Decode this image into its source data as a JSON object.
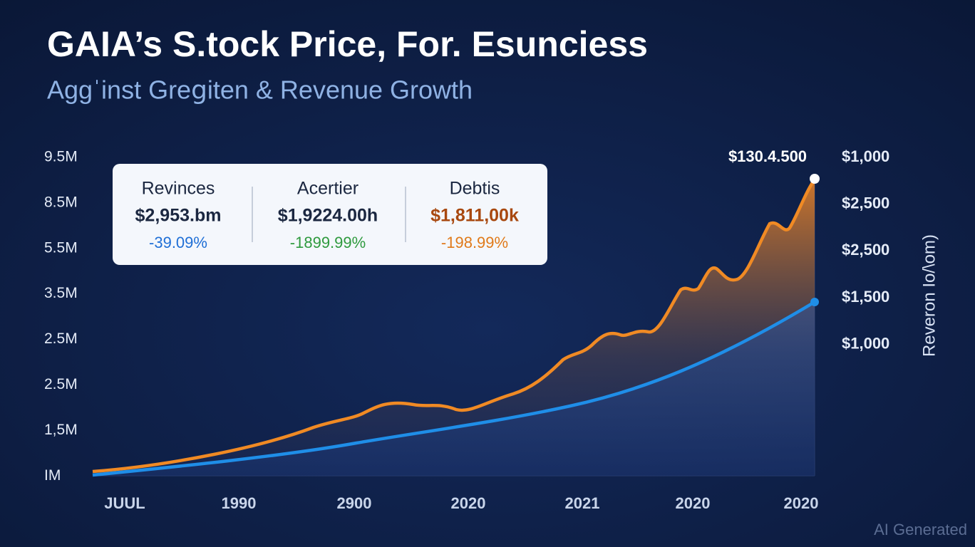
{
  "header": {
    "title": "GAIA’s S.tock Price, For. Esunciess",
    "subtitle": "Aggˈinst Greցiten & Revenue Growth"
  },
  "summary_cards": [
    {
      "label": "Revinces",
      "amount": "$2,953.bm",
      "change": "-39.09%"
    },
    {
      "label": "Acertier",
      "amount": "$1,9224.00h",
      "change": "-1899.99%"
    },
    {
      "label": "Debtis",
      "amount": "$1,811,00k",
      "change": "-198.99%"
    }
  ],
  "left_axis_labels": [
    "9.5M",
    "8.5M",
    "5.5M",
    "3.5M",
    "2.5M",
    "2.5M",
    "1,5M",
    "IM"
  ],
  "right_axis_labels": [
    "$1,000",
    "$2,500",
    "$2,500",
    "$1,500",
    "$1,000"
  ],
  "right_axis_title": "Reveron Io/\\om)",
  "x_labels": [
    "JUUL",
    "1990",
    "2900",
    "2020",
    "2021",
    "2020",
    "2020"
  ],
  "callout": "$130.4.500",
  "watermark": "AI Generated"
}
